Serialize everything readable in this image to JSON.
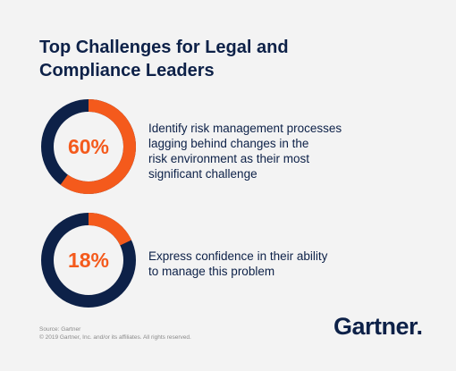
{
  "title_line1": "Top Challenges for Legal and",
  "title_line2": "Compliance Leaders",
  "colors": {
    "navy": "#0d2148",
    "orange": "#f45a1c",
    "background": "#f3f3f3"
  },
  "chart_data": [
    {
      "type": "pie",
      "label": "60%",
      "value": 60,
      "total": 100,
      "description": "Identify risk management processes lagging behind changes in the risk environment as their most significant challenge",
      "description_lines": [
        "Identify risk management processes",
        "lagging behind changes in the",
        "risk environment as their most",
        "significant challenge"
      ]
    },
    {
      "type": "pie",
      "label": "18%",
      "value": 18,
      "total": 100,
      "description": "Express confidence in their ability to manage this problem",
      "description_lines": [
        "Express confidence in their ability",
        "to manage this problem"
      ]
    }
  ],
  "footer": {
    "source": "Source: Gartner",
    "copyright": "© 2019 Gartner, Inc. and/or its affiliates. All rights reserved."
  },
  "logo_text": "Gartner",
  "logo_dot": "."
}
